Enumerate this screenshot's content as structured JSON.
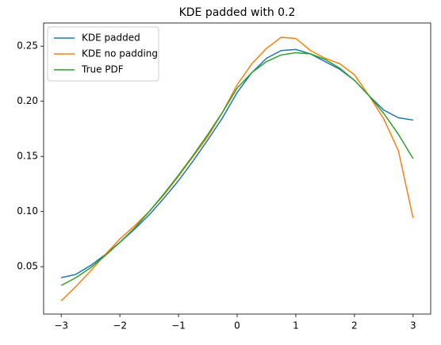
{
  "chart_data": {
    "type": "line",
    "title": "KDE padded with 0.2",
    "x": [
      -3,
      -2.75,
      -2.5,
      -2.25,
      -2,
      -1.75,
      -1.5,
      -1.25,
      -1,
      -0.75,
      -0.5,
      -0.25,
      0,
      0.25,
      0.5,
      0.75,
      1,
      1.25,
      1.5,
      1.75,
      2,
      2.25,
      2.5,
      2.75,
      3
    ],
    "series": [
      {
        "name": "KDE padded",
        "color": "#1f77b4",
        "values": [
          0.04,
          0.043,
          0.051,
          0.061,
          0.072,
          0.084,
          0.097,
          0.112,
          0.128,
          0.146,
          0.165,
          0.185,
          0.208,
          0.226,
          0.239,
          0.246,
          0.247,
          0.243,
          0.236,
          0.229,
          0.219,
          0.205,
          0.192,
          0.185,
          0.183
        ]
      },
      {
        "name": "KDE no padding",
        "color": "#ff7f0e",
        "values": [
          0.019,
          0.032,
          0.046,
          0.061,
          0.075,
          0.087,
          0.1,
          0.115,
          0.132,
          0.15,
          0.168,
          0.19,
          0.215,
          0.234,
          0.248,
          0.258,
          0.257,
          0.246,
          0.239,
          0.234,
          0.224,
          0.205,
          0.184,
          0.155,
          0.094
        ]
      },
      {
        "name": "True PDF",
        "color": "#2ca02c",
        "values": [
          0.033,
          0.04,
          0.049,
          0.06,
          0.072,
          0.085,
          0.1,
          0.116,
          0.133,
          0.151,
          0.17,
          0.19,
          0.212,
          0.226,
          0.236,
          0.242,
          0.244,
          0.243,
          0.238,
          0.23,
          0.219,
          0.205,
          0.189,
          0.17,
          0.148
        ]
      }
    ],
    "xlim": [
      -3.3,
      3.3
    ],
    "ylim": [
      0.007,
      0.271
    ],
    "xticks": [
      {
        "value": -3,
        "label": "−3"
      },
      {
        "value": -2,
        "label": "−2"
      },
      {
        "value": -1,
        "label": "−1"
      },
      0,
      1,
      2,
      3
    ],
    "yticks": [
      0.05,
      {
        "value": 0.1,
        "label": "0.10"
      },
      0.15,
      {
        "value": 0.2,
        "label": "0.20"
      },
      0.25
    ],
    "legend": "upper left"
  }
}
